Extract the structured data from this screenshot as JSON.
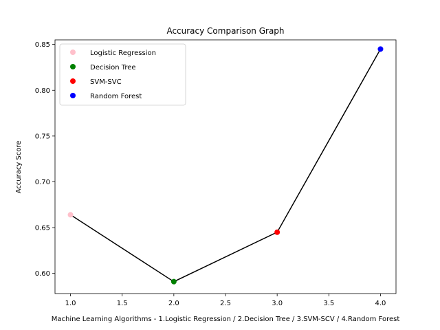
{
  "chart_data": {
    "type": "scatter",
    "title": "Accuracy Comparison Graph",
    "xlabel": "Machine Learning Algorithms - 1.Logistic Regression / 2.Decision Tree / 3.SVM-SCV / 4.Random Forest",
    "ylabel": "Accuracy Score",
    "xlim": [
      0.85,
      4.15
    ],
    "ylim": [
      0.578,
      0.855
    ],
    "xticks": [
      1.0,
      1.5,
      2.0,
      2.5,
      3.0,
      3.5,
      4.0
    ],
    "xtick_labels": [
      "1.0",
      "1.5",
      "2.0",
      "2.5",
      "3.0",
      "3.5",
      "4.0"
    ],
    "yticks": [
      0.6,
      0.65,
      0.7,
      0.75,
      0.8,
      0.85
    ],
    "ytick_labels": [
      "0.60",
      "0.65",
      "0.70",
      "0.75",
      "0.80",
      "0.85"
    ],
    "grid": false,
    "legend_position": "top-left",
    "line": {
      "color": "#000000",
      "x": [
        1,
        2,
        3,
        4
      ],
      "y": [
        0.664,
        0.591,
        0.645,
        0.845
      ]
    },
    "series": [
      {
        "name": "Logistic Regression",
        "color": "#ffc0cb",
        "x": [
          1
        ],
        "y": [
          0.664
        ]
      },
      {
        "name": "Decision Tree",
        "color": "#008000",
        "x": [
          2
        ],
        "y": [
          0.591
        ]
      },
      {
        "name": "SVM-SVC",
        "color": "#ff0000",
        "x": [
          3
        ],
        "y": [
          0.645
        ]
      },
      {
        "name": "Random Forest",
        "color": "#0000ff",
        "x": [
          4
        ],
        "y": [
          0.845
        ]
      }
    ]
  }
}
